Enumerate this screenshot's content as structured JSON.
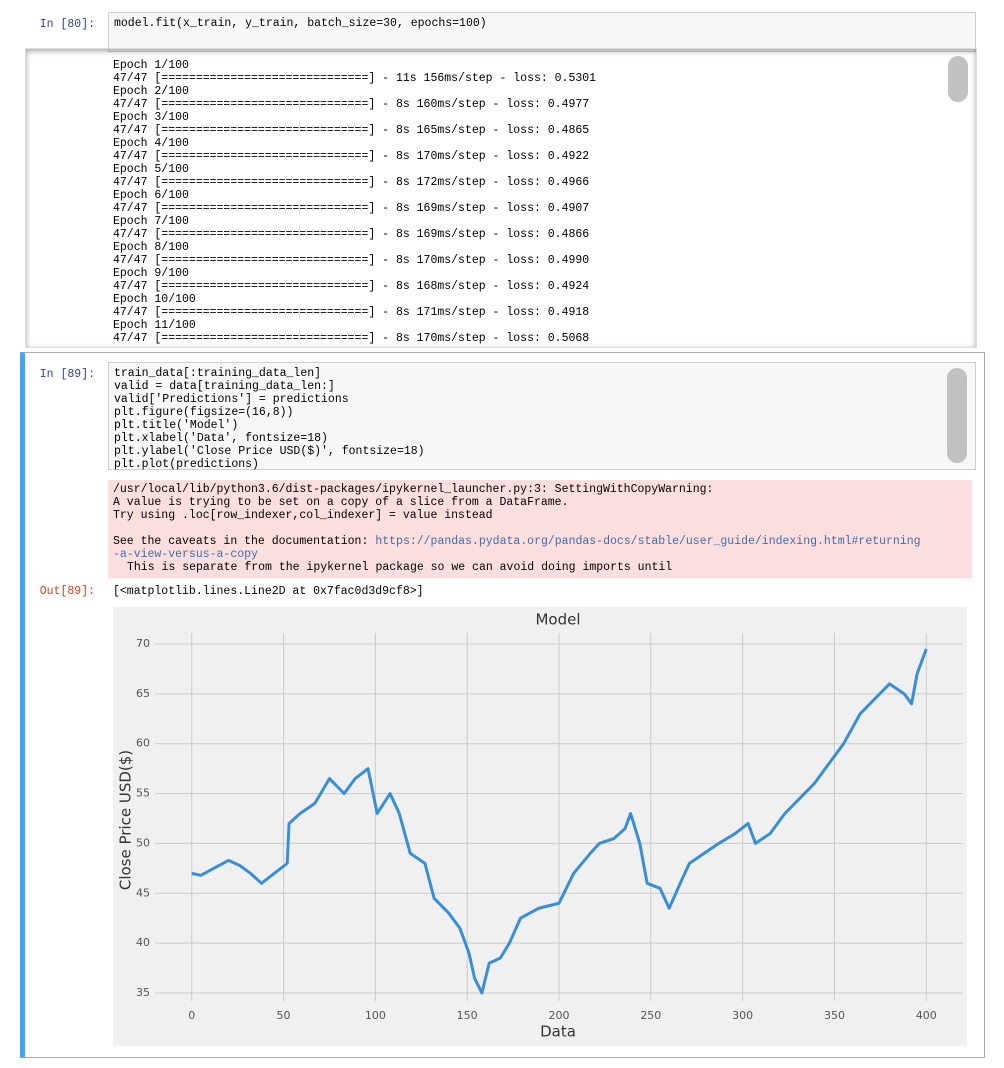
{
  "cells": [
    {
      "prompt": "In [80]:",
      "code": [
        "model.fit(x_train, y_train, batch_size=30, epochs=100)"
      ],
      "output": [
        "Epoch 1/100",
        "47/47 [==============================] - 11s 156ms/step - loss: 0.5301",
        "Epoch 2/100",
        "47/47 [==============================] - 8s 160ms/step - loss: 0.4977",
        "Epoch 3/100",
        "47/47 [==============================] - 8s 165ms/step - loss: 0.4865",
        "Epoch 4/100",
        "47/47 [==============================] - 8s 170ms/step - loss: 0.4922",
        "Epoch 5/100",
        "47/47 [==============================] - 8s 172ms/step - loss: 0.4966",
        "Epoch 6/100",
        "47/47 [==============================] - 8s 169ms/step - loss: 0.4907",
        "Epoch 7/100",
        "47/47 [==============================] - 8s 169ms/step - loss: 0.4866",
        "Epoch 8/100",
        "47/47 [==============================] - 8s 170ms/step - loss: 0.4990",
        "Epoch 9/100",
        "47/47 [==============================] - 8s 168ms/step - loss: 0.4924",
        "Epoch 10/100",
        "47/47 [==============================] - 8s 171ms/step - loss: 0.4918",
        "Epoch 11/100",
        "47/47 [==============================] - 8s 170ms/step - loss: 0.5068"
      ]
    },
    {
      "prompt": "In [89]:",
      "code": [
        "train_data[:training_data_len]",
        "valid = data[training_data_len:]",
        "valid['Predictions'] = predictions",
        "plt.figure(figsize=(16,8))",
        "plt.title('Model')",
        "plt.xlabel('Data', fontsize=18)",
        "plt.ylabel('Close Price USD($)', fontsize=18)",
        "plt.plot(predictions)"
      ],
      "stderr": {
        "warning": [
          "/usr/local/lib/python3.6/dist-packages/ipykernel_launcher.py:3: SettingWithCopyWarning:",
          "A value is trying to be set on a copy of a slice from a DataFrame.",
          "Try using .loc[row_indexer,col_indexer] = value instead"
        ],
        "caveat": "See the caveats in the documentation:",
        "link": [
          "https://pandas.pydata.org/pandas-docs/stable/user_guide/indexing.html#returning",
          "-a-view-versus-a-copy"
        ],
        "tail": "This is separate from the ipykernel package so we can avoid doing imports until"
      },
      "out_prompt": "Out[89]:",
      "out_text": "[<matplotlib.lines.Line2D at 0x7fac0d3d9cf8>]"
    }
  ],
  "chart_data": {
    "type": "line",
    "title": "Model",
    "x_label": "Data",
    "y_label": "Close Price USD($)",
    "x": [
      0,
      5,
      10,
      20,
      26,
      32,
      38,
      45,
      52,
      53,
      59,
      67,
      75,
      83,
      89,
      96,
      101,
      108,
      113,
      119,
      127,
      132,
      140,
      146,
      151,
      154,
      158,
      162,
      168,
      173,
      179,
      189,
      200,
      208,
      217,
      222,
      230,
      236,
      239,
      244,
      248,
      255,
      260,
      266,
      271,
      279,
      287,
      296,
      303,
      307,
      315,
      323,
      331,
      339,
      347,
      355,
      364,
      372,
      380,
      388,
      392,
      395,
      400
    ],
    "values": [
      47,
      46.8,
      47.3,
      48.3,
      47.8,
      47,
      46,
      47,
      48,
      52,
      53,
      54,
      56.5,
      55,
      56.5,
      57.5,
      53,
      55,
      53,
      49,
      48,
      44.5,
      43,
      41.5,
      39,
      36.5,
      35,
      38,
      38.5,
      40,
      42.5,
      43.5,
      44,
      47,
      49,
      50,
      50.5,
      51.5,
      53,
      50,
      46,
      45.5,
      43.5,
      46,
      48,
      49,
      50,
      51,
      52,
      50,
      51,
      53,
      54.5,
      56,
      58,
      60,
      63,
      64.5,
      66,
      65,
      64,
      67,
      69.5
    ],
    "color": "#3a8fd4",
    "xlim": [
      -20,
      420
    ],
    "ylim": [
      34.2,
      71.1
    ],
    "xticks": [
      0,
      50,
      100,
      150,
      200,
      250,
      300,
      350,
      400
    ],
    "yticks": [
      35,
      40,
      45,
      50,
      55,
      60,
      65,
      70
    ],
    "grid": true
  }
}
